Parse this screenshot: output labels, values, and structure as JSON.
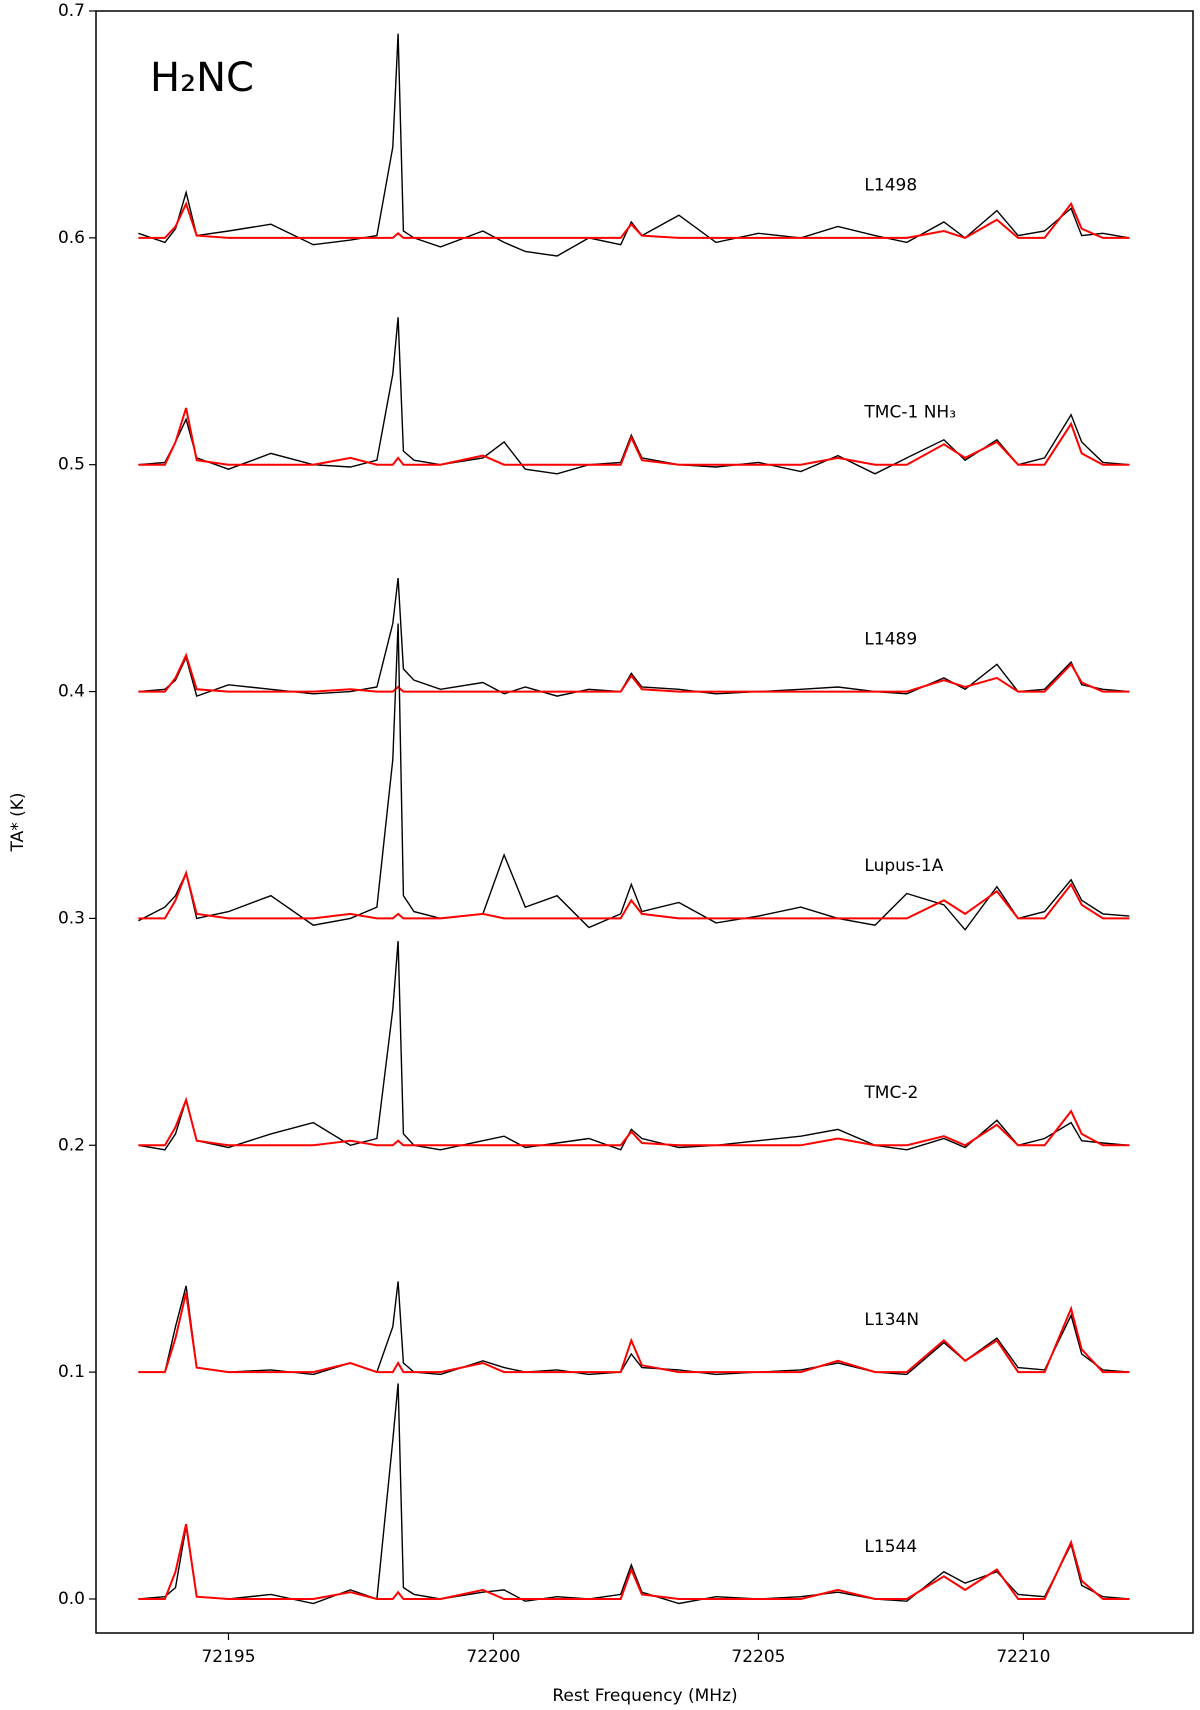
{
  "chart_data": {
    "type": "line",
    "title": "H₂NC",
    "x_label": "Rest Frequency (MHz)",
    "y_label": "TA* (K)",
    "xlim": [
      72192.5,
      72213.2
    ],
    "ylim": [
      -0.015,
      0.7
    ],
    "xticks": [
      72195,
      72200,
      72205,
      72210
    ],
    "yticks": [
      {
        "value": 0,
        "label": "0.0"
      },
      0.1,
      0.2,
      0.3,
      0.4,
      0.5,
      0.6,
      0.7
    ],
    "x": [
      72193.3,
      72193.8,
      72194.0,
      72194.2,
      72194.4,
      72195.0,
      72195.8,
      72196.6,
      72197.3,
      72197.8,
      72198.1,
      72198.2,
      72198.3,
      72198.5,
      72199.0,
      72199.8,
      72200.2,
      72200.6,
      72201.2,
      72201.8,
      72202.4,
      72202.6,
      72202.8,
      72203.5,
      72204.2,
      72205.0,
      72205.8,
      72206.5,
      72207.2,
      72207.8,
      72208.5,
      72208.9,
      72209.5,
      72209.9,
      72210.4,
      72210.9,
      72211.1,
      72211.5,
      72212.0
    ],
    "observed_color": "#000000",
    "model_color": "#ff0000",
    "spectra": [
      {
        "name": "L1498",
        "baseline": 0.6,
        "values": [
          0.602,
          0.598,
          0.604,
          0.62,
          0.601,
          0.603,
          0.606,
          0.597,
          0.599,
          0.601,
          0.64,
          0.69,
          0.603,
          0.6,
          0.596,
          0.603,
          0.598,
          0.594,
          0.592,
          0.6,
          0.597,
          0.607,
          0.601,
          0.61,
          0.598,
          0.602,
          0.6,
          0.605,
          0.601,
          0.598,
          0.607,
          0.6,
          0.612,
          0.601,
          0.603,
          0.613,
          0.601,
          0.602,
          0.6
        ],
        "model": [
          0.6,
          0.6,
          0.605,
          0.615,
          0.601,
          0.6,
          0.6,
          0.6,
          0.6,
          0.6,
          0.6,
          0.602,
          0.6,
          0.6,
          0.6,
          0.6,
          0.6,
          0.6,
          0.6,
          0.6,
          0.6,
          0.606,
          0.601,
          0.6,
          0.6,
          0.6,
          0.6,
          0.6,
          0.6,
          0.6,
          0.603,
          0.6,
          0.608,
          0.6,
          0.6,
          0.615,
          0.604,
          0.6,
          0.6
        ]
      },
      {
        "name": "TMC-1 NH₃",
        "baseline": 0.5,
        "values": [
          0.5,
          0.501,
          0.51,
          0.52,
          0.503,
          0.498,
          0.505,
          0.5,
          0.499,
          0.502,
          0.54,
          0.565,
          0.506,
          0.502,
          0.5,
          0.503,
          0.51,
          0.498,
          0.496,
          0.5,
          0.501,
          0.513,
          0.503,
          0.5,
          0.499,
          0.501,
          0.497,
          0.504,
          0.496,
          0.503,
          0.511,
          0.502,
          0.511,
          0.5,
          0.503,
          0.522,
          0.51,
          0.501,
          0.5
        ],
        "model": [
          0.5,
          0.5,
          0.51,
          0.525,
          0.502,
          0.5,
          0.5,
          0.5,
          0.503,
          0.5,
          0.5,
          0.503,
          0.5,
          0.5,
          0.5,
          0.504,
          0.5,
          0.5,
          0.5,
          0.5,
          0.5,
          0.512,
          0.502,
          0.5,
          0.5,
          0.5,
          0.5,
          0.503,
          0.5,
          0.5,
          0.509,
          0.503,
          0.51,
          0.5,
          0.5,
          0.518,
          0.505,
          0.5,
          0.5
        ]
      },
      {
        "name": "L1489",
        "baseline": 0.4,
        "values": [
          0.4,
          0.401,
          0.405,
          0.415,
          0.398,
          0.403,
          0.401,
          0.399,
          0.4,
          0.402,
          0.43,
          0.45,
          0.41,
          0.405,
          0.401,
          0.404,
          0.399,
          0.402,
          0.398,
          0.401,
          0.4,
          0.408,
          0.402,
          0.401,
          0.399,
          0.4,
          0.401,
          0.402,
          0.4,
          0.399,
          0.406,
          0.401,
          0.412,
          0.4,
          0.401,
          0.413,
          0.403,
          0.401,
          0.4
        ],
        "model": [
          0.4,
          0.4,
          0.406,
          0.416,
          0.401,
          0.4,
          0.4,
          0.4,
          0.401,
          0.4,
          0.4,
          0.402,
          0.4,
          0.4,
          0.4,
          0.4,
          0.4,
          0.4,
          0.4,
          0.4,
          0.4,
          0.407,
          0.401,
          0.4,
          0.4,
          0.4,
          0.4,
          0.4,
          0.4,
          0.4,
          0.405,
          0.402,
          0.406,
          0.4,
          0.4,
          0.412,
          0.404,
          0.4,
          0.4
        ]
      },
      {
        "name": "Lupus-1A",
        "baseline": 0.3,
        "values": [
          0.299,
          0.305,
          0.31,
          0.32,
          0.3,
          0.303,
          0.31,
          0.297,
          0.3,
          0.305,
          0.37,
          0.43,
          0.31,
          0.303,
          0.3,
          0.302,
          0.328,
          0.305,
          0.31,
          0.296,
          0.302,
          0.315,
          0.303,
          0.307,
          0.298,
          0.301,
          0.305,
          0.3,
          0.297,
          0.311,
          0.306,
          0.295,
          0.314,
          0.3,
          0.303,
          0.317,
          0.308,
          0.302,
          0.301
        ],
        "model": [
          0.3,
          0.3,
          0.308,
          0.32,
          0.302,
          0.3,
          0.3,
          0.3,
          0.302,
          0.3,
          0.3,
          0.302,
          0.3,
          0.3,
          0.3,
          0.302,
          0.3,
          0.3,
          0.3,
          0.3,
          0.3,
          0.308,
          0.302,
          0.3,
          0.3,
          0.3,
          0.3,
          0.3,
          0.3,
          0.3,
          0.308,
          0.302,
          0.312,
          0.3,
          0.3,
          0.315,
          0.306,
          0.3,
          0.3
        ]
      },
      {
        "name": "TMC-2",
        "baseline": 0.2,
        "values": [
          0.2,
          0.198,
          0.205,
          0.22,
          0.202,
          0.199,
          0.205,
          0.21,
          0.2,
          0.203,
          0.26,
          0.29,
          0.205,
          0.2,
          0.198,
          0.202,
          0.204,
          0.199,
          0.201,
          0.203,
          0.198,
          0.207,
          0.203,
          0.199,
          0.2,
          0.202,
          0.204,
          0.207,
          0.2,
          0.198,
          0.203,
          0.199,
          0.211,
          0.2,
          0.203,
          0.21,
          0.202,
          0.201,
          0.2
        ],
        "model": [
          0.2,
          0.2,
          0.208,
          0.22,
          0.202,
          0.2,
          0.2,
          0.2,
          0.202,
          0.2,
          0.2,
          0.202,
          0.2,
          0.2,
          0.2,
          0.2,
          0.2,
          0.2,
          0.2,
          0.2,
          0.2,
          0.206,
          0.201,
          0.2,
          0.2,
          0.2,
          0.2,
          0.203,
          0.2,
          0.2,
          0.204,
          0.2,
          0.209,
          0.2,
          0.2,
          0.215,
          0.205,
          0.2,
          0.2
        ]
      },
      {
        "name": "L134N",
        "baseline": 0.1,
        "values": [
          0.1,
          0.1,
          0.12,
          0.138,
          0.102,
          0.1,
          0.101,
          0.099,
          0.104,
          0.1,
          0.12,
          0.14,
          0.104,
          0.1,
          0.099,
          0.105,
          0.102,
          0.1,
          0.101,
          0.099,
          0.1,
          0.108,
          0.102,
          0.101,
          0.099,
          0.1,
          0.101,
          0.104,
          0.1,
          0.099,
          0.113,
          0.105,
          0.115,
          0.102,
          0.101,
          0.125,
          0.108,
          0.101,
          0.1
        ],
        "model": [
          0.1,
          0.1,
          0.115,
          0.135,
          0.102,
          0.1,
          0.1,
          0.1,
          0.104,
          0.1,
          0.1,
          0.104,
          0.1,
          0.1,
          0.1,
          0.104,
          0.1,
          0.1,
          0.1,
          0.1,
          0.1,
          0.114,
          0.103,
          0.1,
          0.1,
          0.1,
          0.1,
          0.105,
          0.1,
          0.1,
          0.114,
          0.105,
          0.114,
          0.1,
          0.1,
          0.128,
          0.11,
          0.1,
          0.1
        ]
      },
      {
        "name": "L1544",
        "baseline": 0.0,
        "values": [
          0.0,
          0.001,
          0.005,
          0.032,
          0.001,
          0.0,
          0.002,
          -0.002,
          0.004,
          0.0,
          0.07,
          0.095,
          0.005,
          0.002,
          0.0,
          0.003,
          0.004,
          -0.001,
          0.001,
          0.0,
          0.002,
          0.015,
          0.003,
          -0.002,
          0.001,
          0.0,
          0.001,
          0.003,
          0.0,
          -0.001,
          0.012,
          0.007,
          0.012,
          0.002,
          0.001,
          0.024,
          0.006,
          0.001,
          0.0
        ],
        "model": [
          0.0,
          0.0,
          0.012,
          0.033,
          0.001,
          0.0,
          0.0,
          0.0,
          0.003,
          0.0,
          0.0,
          0.003,
          0.0,
          0.0,
          0.0,
          0.004,
          0.0,
          0.0,
          0.0,
          0.0,
          0.0,
          0.013,
          0.002,
          0.0,
          0.0,
          0.0,
          0.0,
          0.004,
          0.0,
          0.0,
          0.01,
          0.004,
          0.013,
          0.0,
          0.0,
          0.025,
          0.008,
          0.0,
          0.0
        ]
      }
    ]
  }
}
